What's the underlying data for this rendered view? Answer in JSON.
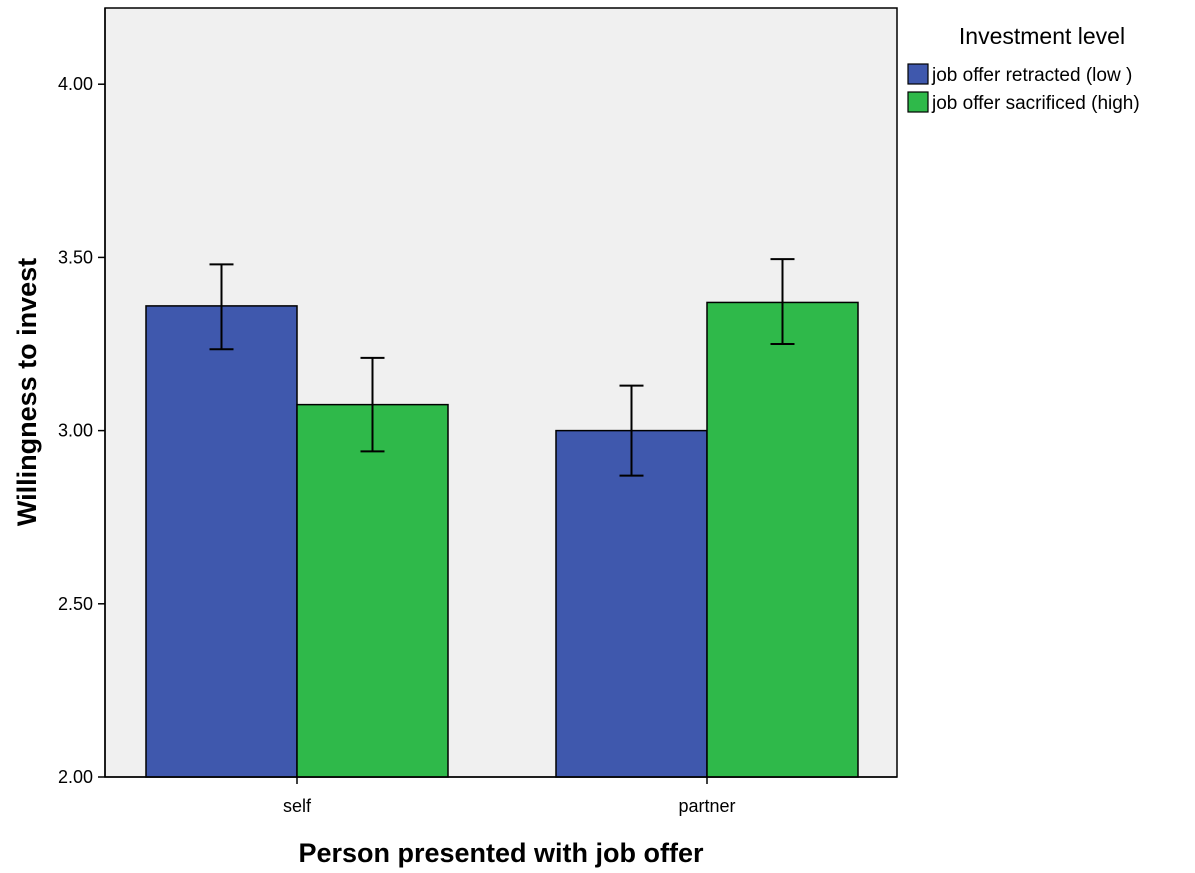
{
  "chart_data": {
    "type": "bar",
    "title": "",
    "xlabel": "Person presented with job offer",
    "ylabel": "Willingness to invest",
    "categories": [
      "self",
      "partner"
    ],
    "ylim": [
      2.0,
      4.22
    ],
    "yticks": [
      2.0,
      2.5,
      3.0,
      3.5,
      4.0
    ],
    "ytick_labels": [
      "2.00",
      "2.50",
      "3.00",
      "3.50",
      "4.00"
    ],
    "grid": false,
    "legend": {
      "title": "Investment level",
      "placement": "right"
    },
    "series": [
      {
        "name": "job offer retracted (low )",
        "color": "#3f58ad",
        "values": [
          3.36,
          3.0
        ],
        "error_low": [
          3.235,
          2.87
        ],
        "error_high": [
          3.48,
          3.13
        ]
      },
      {
        "name": "job offer sacrificed (high)",
        "color": "#2fb94a",
        "values": [
          3.075,
          3.37
        ],
        "error_low": [
          2.94,
          3.25
        ],
        "error_high": [
          3.21,
          3.495
        ]
      }
    ],
    "plot_background": "#f0f0f0"
  }
}
